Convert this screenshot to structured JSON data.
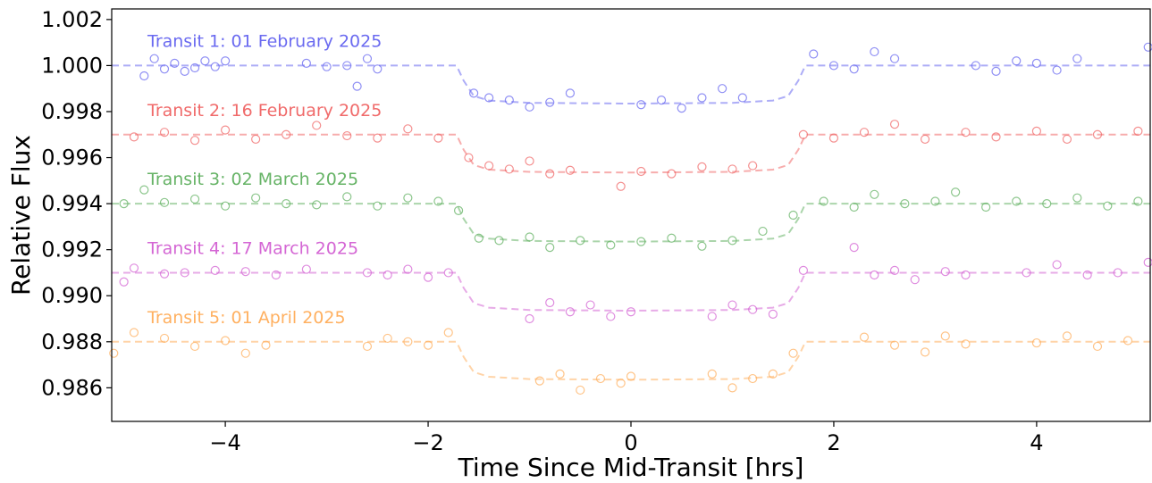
{
  "chart_data": {
    "type": "scatter",
    "x_label": "Time Since Mid-Transit [hrs]",
    "y_label": "Relative Flux",
    "xlim": [
      -5.12,
      5.12
    ],
    "ylim": [
      0.98454,
      1.00246
    ],
    "xticks": [
      {
        "value": -4,
        "label": "−4"
      },
      {
        "value": -2,
        "label": "−2"
      },
      0,
      2,
      4
    ],
    "yticks": [
      0.986,
      0.988,
      {
        "value": 0.99,
        "label": "0.990"
      },
      0.992,
      0.994,
      0.996,
      0.998,
      {
        "value": 1,
        "label": "1.000"
      },
      1.002
    ],
    "model_x": [
      -5.12,
      -1.72,
      -1.65,
      -1.55,
      -1.4,
      -1.0,
      0,
      1.0,
      1.4,
      1.55,
      1.65,
      1.72,
      5.12
    ],
    "series": [
      {
        "name": "Transit 1: 01 February 2025",
        "color": "#6a6af0",
        "x": [
          -4.8,
          -4.7,
          -4.6,
          -4.5,
          -4.4,
          -4.3,
          -4.2,
          -4.1,
          -4.0,
          -3.2,
          -3.0,
          -2.8,
          -2.7,
          -2.6,
          -2.5,
          -1.55,
          -1.4,
          -1.2,
          -1.0,
          -0.8,
          -0.6,
          0.1,
          0.3,
          0.5,
          0.7,
          0.9,
          1.1,
          1.8,
          2.0,
          2.2,
          2.4,
          2.6,
          3.4,
          3.6,
          3.8,
          4.0,
          4.2,
          4.4,
          5.1
        ],
        "values": [
          0.99955,
          1.0003,
          0.99985,
          1.0001,
          0.99975,
          0.9999,
          1.0002,
          0.99995,
          1.0002,
          1.0001,
          0.99995,
          1.0,
          0.9991,
          1.0003,
          0.99985,
          0.9988,
          0.9986,
          0.9985,
          0.9982,
          0.9984,
          0.9988,
          0.9983,
          0.9985,
          0.99815,
          0.9986,
          0.999,
          0.9986,
          1.0005,
          1.0,
          0.99985,
          1.0006,
          1.0003,
          1.0,
          0.99975,
          1.0002,
          1.0001,
          0.9998,
          1.0003,
          1.0008
        ],
        "model_values": [
          1.0,
          1.0,
          0.99934,
          0.99868,
          0.99848,
          0.99838,
          0.99835,
          0.99838,
          0.99848,
          0.99868,
          0.99934,
          1.0,
          1.0
        ]
      },
      {
        "name": "Transit 2: 16 February 2025",
        "color": "#f06a6a",
        "x": [
          -4.9,
          -4.6,
          -4.3,
          -4.0,
          -3.7,
          -3.4,
          -3.1,
          -2.8,
          -2.5,
          -2.2,
          -1.9,
          -1.6,
          -1.4,
          -1.2,
          -1.0,
          -0.8,
          -0.6,
          -0.1,
          0.1,
          0.4,
          0.7,
          1.0,
          1.2,
          1.7,
          2.0,
          2.3,
          2.6,
          2.9,
          3.3,
          3.6,
          4.0,
          4.3,
          4.6,
          5.0
        ],
        "values": [
          0.9969,
          0.9971,
          0.99675,
          0.9972,
          0.9968,
          0.997,
          0.9974,
          0.99695,
          0.99685,
          0.99725,
          0.99685,
          0.996,
          0.99565,
          0.9955,
          0.99585,
          0.9953,
          0.99545,
          0.99475,
          0.9954,
          0.9953,
          0.9956,
          0.9955,
          0.99565,
          0.997,
          0.99685,
          0.9971,
          0.99745,
          0.9968,
          0.9971,
          0.9969,
          0.99715,
          0.9968,
          0.997,
          0.99715
        ],
        "model_values": [
          0.997,
          0.997,
          0.99634,
          0.99568,
          0.99548,
          0.99538,
          0.99535,
          0.99538,
          0.99548,
          0.99568,
          0.99634,
          0.997,
          0.997
        ]
      },
      {
        "name": "Transit 3: 02 March 2025",
        "color": "#66b366",
        "x": [
          -5.0,
          -4.8,
          -4.6,
          -4.3,
          -4.0,
          -3.7,
          -3.4,
          -3.1,
          -2.8,
          -2.5,
          -2.2,
          -1.9,
          -1.7,
          -1.5,
          -1.3,
          -1.0,
          -0.8,
          -0.5,
          -0.2,
          0.1,
          0.4,
          0.7,
          1.0,
          1.3,
          1.6,
          1.9,
          2.2,
          2.4,
          2.7,
          3.0,
          3.2,
          3.5,
          3.8,
          4.1,
          4.4,
          4.7,
          5.0
        ],
        "values": [
          0.994,
          0.9946,
          0.99405,
          0.9942,
          0.9939,
          0.99425,
          0.994,
          0.99395,
          0.9943,
          0.9939,
          0.99425,
          0.9941,
          0.9937,
          0.9925,
          0.9924,
          0.99255,
          0.9921,
          0.9924,
          0.9922,
          0.99235,
          0.9925,
          0.99215,
          0.9924,
          0.9928,
          0.9935,
          0.9941,
          0.99385,
          0.9944,
          0.994,
          0.9941,
          0.9945,
          0.99385,
          0.9941,
          0.994,
          0.99425,
          0.9939,
          0.9941
        ],
        "model_values": [
          0.994,
          0.994,
          0.99334,
          0.99268,
          0.99248,
          0.99238,
          0.99235,
          0.99238,
          0.99248,
          0.99268,
          0.99334,
          0.994,
          0.994
        ]
      },
      {
        "name": "Transit 4: 17 March 2025",
        "color": "#d466d4",
        "x": [
          -5.0,
          -4.9,
          -4.6,
          -4.4,
          -4.1,
          -3.8,
          -3.5,
          -3.2,
          -2.6,
          -2.4,
          -2.2,
          -2.0,
          -1.8,
          -1.0,
          -0.8,
          -0.6,
          -0.4,
          -0.2,
          0.0,
          0.8,
          1.0,
          1.2,
          1.4,
          1.7,
          2.2,
          2.4,
          2.6,
          2.8,
          3.1,
          3.3,
          3.9,
          4.2,
          4.5,
          4.8,
          5.1
        ],
        "values": [
          0.9906,
          0.9912,
          0.99095,
          0.991,
          0.9911,
          0.99105,
          0.9909,
          0.99115,
          0.991,
          0.9909,
          0.99115,
          0.9908,
          0.991,
          0.989,
          0.9897,
          0.9893,
          0.9896,
          0.9891,
          0.9893,
          0.9891,
          0.9896,
          0.9894,
          0.9892,
          0.9911,
          0.9921,
          0.9909,
          0.9911,
          0.9907,
          0.99105,
          0.9909,
          0.991,
          0.99135,
          0.9909,
          0.991,
          0.99145
        ],
        "model_values": [
          0.991,
          0.991,
          0.99034,
          0.98968,
          0.98948,
          0.98938,
          0.98935,
          0.98938,
          0.98948,
          0.98968,
          0.99034,
          0.991,
          0.991
        ]
      },
      {
        "name": "Transit 5: 01 April 2025",
        "color": "#ffb060",
        "x": [
          -5.1,
          -4.9,
          -4.6,
          -4.3,
          -4.0,
          -3.8,
          -3.6,
          -2.6,
          -2.4,
          -2.2,
          -2.0,
          -1.8,
          -0.9,
          -0.7,
          -0.5,
          -0.3,
          -0.1,
          0.0,
          0.8,
          1.0,
          1.2,
          1.4,
          1.6,
          2.3,
          2.6,
          2.9,
          3.1,
          3.3,
          4.0,
          4.3,
          4.6,
          4.9
        ],
        "values": [
          0.9875,
          0.9884,
          0.98815,
          0.9878,
          0.98805,
          0.9875,
          0.98785,
          0.9878,
          0.98815,
          0.988,
          0.98785,
          0.9884,
          0.9863,
          0.9866,
          0.9859,
          0.9864,
          0.9862,
          0.9865,
          0.9866,
          0.986,
          0.9864,
          0.9866,
          0.9875,
          0.9882,
          0.98785,
          0.98755,
          0.98825,
          0.9879,
          0.98795,
          0.98825,
          0.9878,
          0.98805
        ],
        "model_values": [
          0.988,
          0.988,
          0.98734,
          0.98668,
          0.98648,
          0.98638,
          0.98635,
          0.98638,
          0.98648,
          0.98668,
          0.98734,
          0.988,
          0.988
        ]
      }
    ]
  }
}
